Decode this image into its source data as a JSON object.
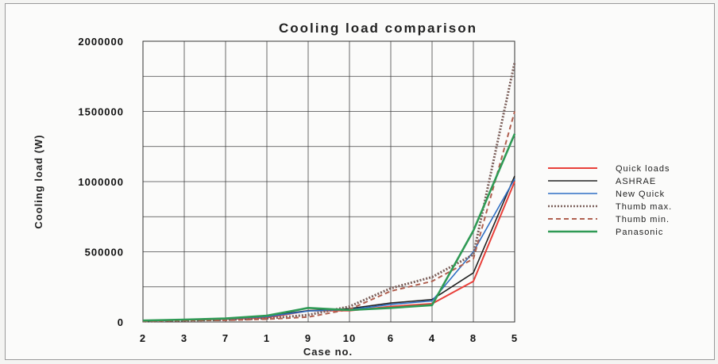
{
  "chart_data": {
    "type": "line",
    "title": "Cooling load comparison",
    "xlabel": "Case no.",
    "ylabel": "Cooling load (W)",
    "categories": [
      "2",
      "3",
      "7",
      "1",
      "9",
      "10",
      "6",
      "4",
      "8",
      "5"
    ],
    "ylim": [
      0,
      2000000
    ],
    "yticks": [
      "0",
      "500000",
      "1000000",
      "1500000",
      "2000000"
    ],
    "grid": true,
    "legend_position": "right",
    "series": [
      {
        "name": "Quick loads",
        "color": "#e8403a",
        "dash": "none",
        "width": 2,
        "values": [
          8000,
          15000,
          20000,
          30000,
          80000,
          80000,
          110000,
          130000,
          290000,
          1000000
        ]
      },
      {
        "name": "ASHRAE",
        "color": "#222222",
        "dash": "none",
        "width": 1.6,
        "values": [
          8000,
          15000,
          22000,
          45000,
          80000,
          95000,
          135000,
          160000,
          350000,
          1040000
        ]
      },
      {
        "name": "New Quick",
        "color": "#2f6fc4",
        "dash": "none",
        "width": 1.6,
        "values": [
          8000,
          15000,
          21000,
          38000,
          78000,
          88000,
          125000,
          150000,
          500000,
          1020000
        ]
      },
      {
        "name": "Thumb max.",
        "color": "#7b5f5a",
        "dash": "2,2",
        "width": 3,
        "values": [
          5000,
          12000,
          15000,
          25000,
          50000,
          110000,
          240000,
          320000,
          480000,
          1850000
        ]
      },
      {
        "name": "Thumb min.",
        "color": "#b06050",
        "dash": "6,4",
        "width": 2,
        "values": [
          5000,
          10000,
          12000,
          20000,
          35000,
          90000,
          220000,
          290000,
          450000,
          1500000
        ]
      },
      {
        "name": "Panasonic",
        "color": "#2f9a55",
        "dash": "none",
        "width": 2.6,
        "values": [
          10000,
          17000,
          25000,
          45000,
          100000,
          85000,
          100000,
          120000,
          650000,
          1340000
        ]
      }
    ]
  }
}
